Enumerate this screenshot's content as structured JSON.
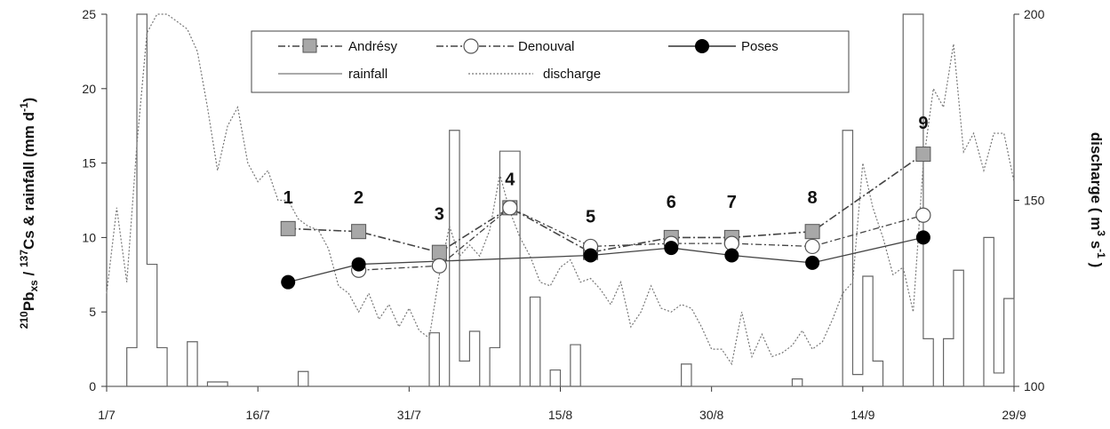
{
  "chart_data": {
    "type": "line",
    "ylabel_left_parts": [
      "210",
      "Pb",
      "xs",
      " / ",
      "137",
      "Cs & rainfall (mm d",
      "-1",
      ")"
    ],
    "ylabel_right_parts": [
      "discharge ( m",
      "3",
      " s",
      "-1",
      " )"
    ],
    "x_ticks": [
      "1/7",
      "16/7",
      "31/7",
      "15/8",
      "30/8",
      "14/9",
      "29/9"
    ],
    "x_range_days": [
      0,
      90
    ],
    "ylim_left": [
      0,
      25
    ],
    "ylim_right": [
      100,
      200
    ],
    "yticks_left": [
      "0",
      "5",
      "10",
      "15",
      "20",
      "25"
    ],
    "yticks_right": [
      "100",
      "150",
      "200"
    ],
    "legend": {
      "andresy": "Andrésy",
      "denouval": "Denouval",
      "poses": "Poses",
      "rainfall": "rainfall",
      "discharge": "discharge"
    },
    "series": [
      {
        "name": "Andrésy",
        "axis": "left",
        "marker": "square",
        "x": [
          "19/7",
          "26/7",
          "3/8",
          "10/8",
          "18/8",
          "26/8",
          "1/9",
          "9/9",
          "20/9"
        ],
        "y": [
          10.6,
          10.4,
          9.0,
          12.0,
          9.0,
          10.0,
          10.0,
          10.4,
          15.6
        ]
      },
      {
        "name": "Denouval",
        "axis": "left",
        "marker": "open-circle",
        "x": [
          "26/7",
          "3/8",
          "10/8",
          "18/8",
          "26/8",
          "1/9",
          "9/9",
          "20/9"
        ],
        "y": [
          7.8,
          8.1,
          12.0,
          9.4,
          9.6,
          9.6,
          9.4,
          11.5
        ]
      },
      {
        "name": "Poses",
        "axis": "left",
        "marker": "filled-circle",
        "x": [
          "19/7",
          "26/7",
          "18/8",
          "26/8",
          "1/9",
          "9/9",
          "20/9"
        ],
        "y": [
          7.0,
          8.2,
          8.8,
          9.3,
          8.8,
          8.3,
          10.0
        ]
      },
      {
        "name": "rainfall",
        "axis": "left",
        "style": "step",
        "x": [
          "1/7",
          "3/7",
          "4/7",
          "5/7",
          "6/7",
          "7/7",
          "9/7",
          "10/7",
          "11/7",
          "13/7",
          "14/7",
          "15/7",
          "16/7",
          "20/7",
          "21/7",
          "22/7",
          "2/8",
          "3/8",
          "4/8",
          "5/8",
          "6/8",
          "7/8",
          "8/8",
          "9/8",
          "11/8",
          "12/8",
          "13/8",
          "14/8",
          "15/8",
          "16/8",
          "17/8",
          "18/8",
          "27/8",
          "28/8",
          "7/9",
          "8/9",
          "12/9",
          "13/9",
          "14/9",
          "15/9",
          "16/9",
          "17/9",
          "18/9",
          "20/9",
          "21/9",
          "22/9",
          "23/9",
          "24/9",
          "26/9",
          "27/9",
          "28/9",
          "29/9"
        ],
        "y": [
          0,
          2.6,
          25.5,
          8.2,
          2.6,
          0,
          3.0,
          0,
          0.3,
          0,
          0,
          0,
          0,
          1.0,
          0,
          0,
          3.6,
          0,
          17.2,
          1.7,
          3.7,
          0,
          2.6,
          15.8,
          0,
          6.0,
          0,
          1.1,
          0,
          2.8,
          0,
          0,
          1.5,
          0,
          0.5,
          0,
          17.2,
          0.8,
          7.4,
          1.7,
          0,
          0,
          25.5,
          3.2,
          0,
          3.2,
          7.8,
          0,
          10.0,
          0.9,
          5.9,
          0
        ]
      },
      {
        "name": "discharge",
        "axis": "right",
        "style": "dotted",
        "x": [
          "1/7",
          "2/7",
          "3/7",
          "4/7",
          "5/7",
          "6/7",
          "7/7",
          "8/7",
          "9/7",
          "10/7",
          "11/7",
          "12/7",
          "13/7",
          "14/7",
          "15/7",
          "16/7",
          "17/7",
          "18/7",
          "19/7",
          "20/7",
          "21/7",
          "22/7",
          "23/7",
          "24/7",
          "25/7",
          "26/7",
          "27/7",
          "28/7",
          "29/7",
          "30/7",
          "31/7",
          "1/8",
          "2/8",
          "3/8",
          "4/8",
          "5/8",
          "6/8",
          "7/8",
          "8/8",
          "9/8",
          "10/8",
          "11/8",
          "12/8",
          "13/8",
          "14/8",
          "15/8",
          "16/8",
          "17/8",
          "18/8",
          "19/8",
          "20/8",
          "21/8",
          "22/8",
          "23/8",
          "24/8",
          "25/8",
          "26/8",
          "27/8",
          "28/8",
          "29/8",
          "30/8",
          "31/8",
          "1/9",
          "2/9",
          "3/9",
          "4/9",
          "5/9",
          "6/9",
          "7/9",
          "8/9",
          "9/9",
          "10/9",
          "11/9",
          "12/9",
          "13/9",
          "14/9",
          "15/9",
          "16/9",
          "17/9",
          "18/9",
          "19/9",
          "20/9",
          "21/9",
          "22/9",
          "23/9",
          "24/9",
          "25/9",
          "26/9",
          "27/9",
          "28/9",
          "29/9"
        ],
        "y": [
          125,
          148,
          128,
          165,
          195,
          201,
          202,
          198,
          196,
          190,
          175,
          158,
          170,
          175,
          160,
          155,
          158,
          150,
          150,
          145,
          143,
          142,
          137,
          127,
          125,
          120,
          125,
          118,
          122,
          116,
          121,
          115,
          113,
          130,
          143,
          135,
          138,
          135,
          142,
          157,
          147,
          140,
          135,
          128,
          127,
          132,
          134,
          128,
          129,
          126,
          122,
          128,
          116,
          120,
          127,
          121,
          120,
          122,
          121,
          116,
          110,
          110,
          106,
          120,
          108,
          114,
          108,
          109,
          111,
          115,
          110,
          112,
          118,
          125,
          128,
          160,
          148,
          140,
          130,
          132,
          120,
          160,
          180,
          175,
          192,
          163,
          168,
          158,
          168,
          168,
          155
        ]
      }
    ],
    "annotations": [
      "1",
      "2",
      "3",
      "4",
      "5",
      "6",
      "7",
      "8",
      "9"
    ],
    "annotation_dates": [
      "19/7",
      "26/7",
      "3/8",
      "10/8",
      "18/8",
      "26/8",
      "1/9",
      "9/9",
      "20/9"
    ],
    "annotation_values": [
      12.3,
      12.3,
      11.2,
      13.5,
      11.0,
      12.0,
      12.0,
      12.3,
      17.3
    ]
  }
}
